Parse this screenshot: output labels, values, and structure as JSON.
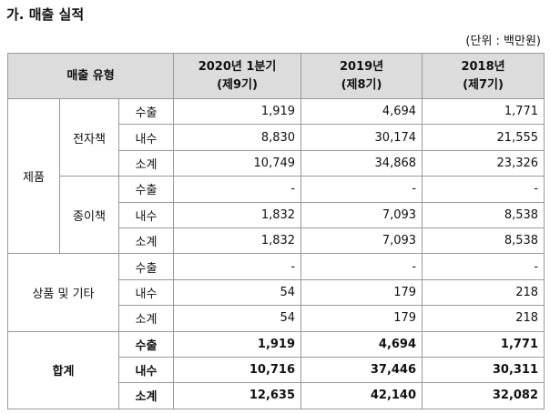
{
  "title": "가. 매출 실적",
  "unit": "(단위 : 백만원)",
  "table": {
    "header": {
      "type": "매출 유형",
      "columns": [
        [
          "2020년 1분기",
          "(제9기)"
        ],
        [
          "2019년",
          "(제8기)"
        ],
        [
          "2018년",
          "(제7기)"
        ]
      ]
    },
    "groups": [
      {
        "label": "제품",
        "subgroups": [
          {
            "label": "전자책",
            "rows": [
              {
                "kind": "수출",
                "values": [
                  "1,919",
                  "4,694",
                  "1,771"
                ]
              },
              {
                "kind": "내수",
                "values": [
                  "8,830",
                  "30,174",
                  "21,555"
                ]
              },
              {
                "kind": "소계",
                "values": [
                  "10,749",
                  "34,868",
                  "23,326"
                ]
              }
            ]
          },
          {
            "label": "종이책",
            "rows": [
              {
                "kind": "수출",
                "values": [
                  "-",
                  "-",
                  "-"
                ]
              },
              {
                "kind": "내수",
                "values": [
                  "1,832",
                  "7,093",
                  "8,538"
                ]
              },
              {
                "kind": "소계",
                "values": [
                  "1,832",
                  "7,093",
                  "8,538"
                ]
              }
            ]
          }
        ]
      },
      {
        "label": "상품 및 기타",
        "rows": [
          {
            "kind": "수출",
            "values": [
              "-",
              "-",
              "-"
            ]
          },
          {
            "kind": "내수",
            "values": [
              "54",
              "179",
              "218"
            ]
          },
          {
            "kind": "소계",
            "values": [
              "54",
              "179",
              "218"
            ]
          }
        ]
      },
      {
        "label": "합계",
        "bold": true,
        "rows": [
          {
            "kind": "수출",
            "values": [
              "1,919",
              "4,694",
              "1,771"
            ]
          },
          {
            "kind": "내수",
            "values": [
              "10,716",
              "37,446",
              "30,311"
            ]
          },
          {
            "kind": "소계",
            "values": [
              "12,635",
              "42,140",
              "32,082"
            ]
          }
        ]
      }
    ]
  }
}
